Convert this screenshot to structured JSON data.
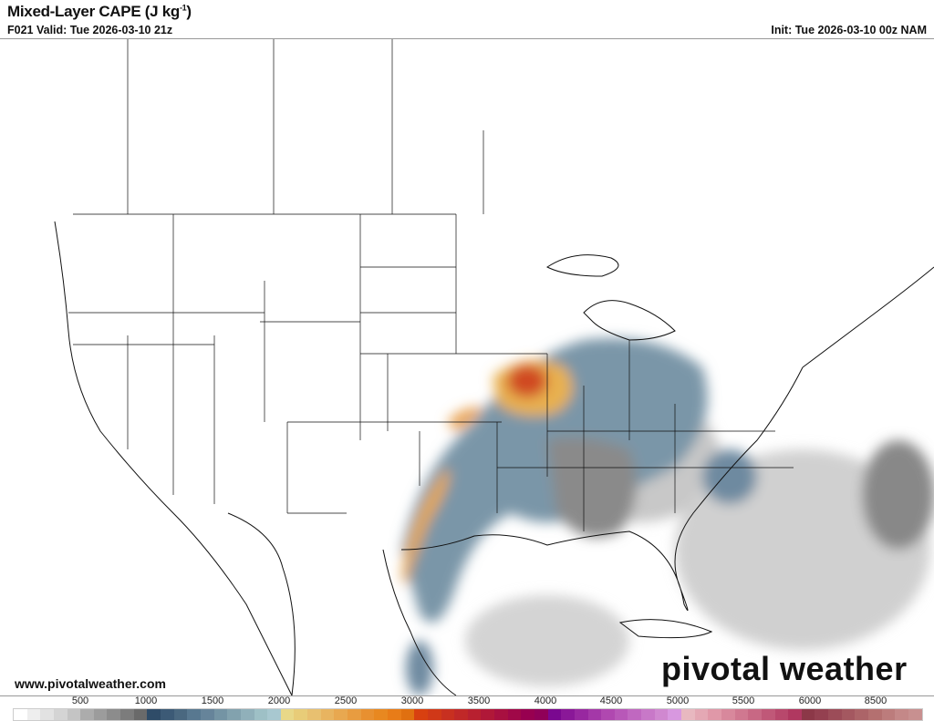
{
  "header": {
    "title": "Mixed-Layer CAPE (J kg",
    "title_sup": "-1",
    "title_end": ")",
    "valid": "F021 Valid: Tue 2026-03-10 21z",
    "init": "Init: Tue 2026-03-10 00z NAM"
  },
  "footer": {
    "url": "www.pivotalweather.com",
    "logo": "pivotal weather"
  },
  "colorbar": {
    "labels": [
      "500",
      "1000",
      "1500",
      "2000",
      "2500",
      "3000",
      "3500",
      "4000",
      "4500",
      "5000",
      "5500",
      "6000",
      "8500"
    ],
    "colors": [
      "#ffffff",
      "#eeeeee",
      "#e2e2e2",
      "#d4d4d4",
      "#c4c4c4",
      "#acacac",
      "#9c9c9c",
      "#8c8c8c",
      "#7c7c7c",
      "#6a6a6a",
      "#2f4c68",
      "#3c5a76",
      "#4a6880",
      "#587890",
      "#66849a",
      "#7494a4",
      "#82a2ae",
      "#90b0ba",
      "#9ec0c6",
      "#a8c8d0",
      "#e8d888",
      "#e8cc78",
      "#e8c070",
      "#e8b460",
      "#e8a850",
      "#e89c40",
      "#e89030",
      "#e88820",
      "#e87c18",
      "#e07010",
      "#d84010",
      "#d03818",
      "#c83020",
      "#c02828",
      "#b82030",
      "#b01838",
      "#a81040",
      "#a00848",
      "#980050",
      "#900058",
      "#7a0890",
      "#8a1898",
      "#9828a0",
      "#a438a8",
      "#b048b0",
      "#b858b8",
      "#c068c0",
      "#c878c8",
      "#d088d0",
      "#d898e0",
      "#e8b8c0",
      "#e4a8b4",
      "#e098a8",
      "#d8889c",
      "#d07890",
      "#c86884",
      "#c05878",
      "#b8486c",
      "#b03860",
      "#8c3848",
      "#944050",
      "#9c4c58",
      "#a45860",
      "#ac6468",
      "#b47070",
      "#bc7c7c",
      "#c48888",
      "#c89090"
    ]
  },
  "map": {
    "field": "MLCAPE",
    "colors": {
      "low_gray": "#9a9a9a",
      "blue": "#5a8098",
      "orange": "#e8a040",
      "red": "#d04820",
      "border": "#111111"
    }
  }
}
